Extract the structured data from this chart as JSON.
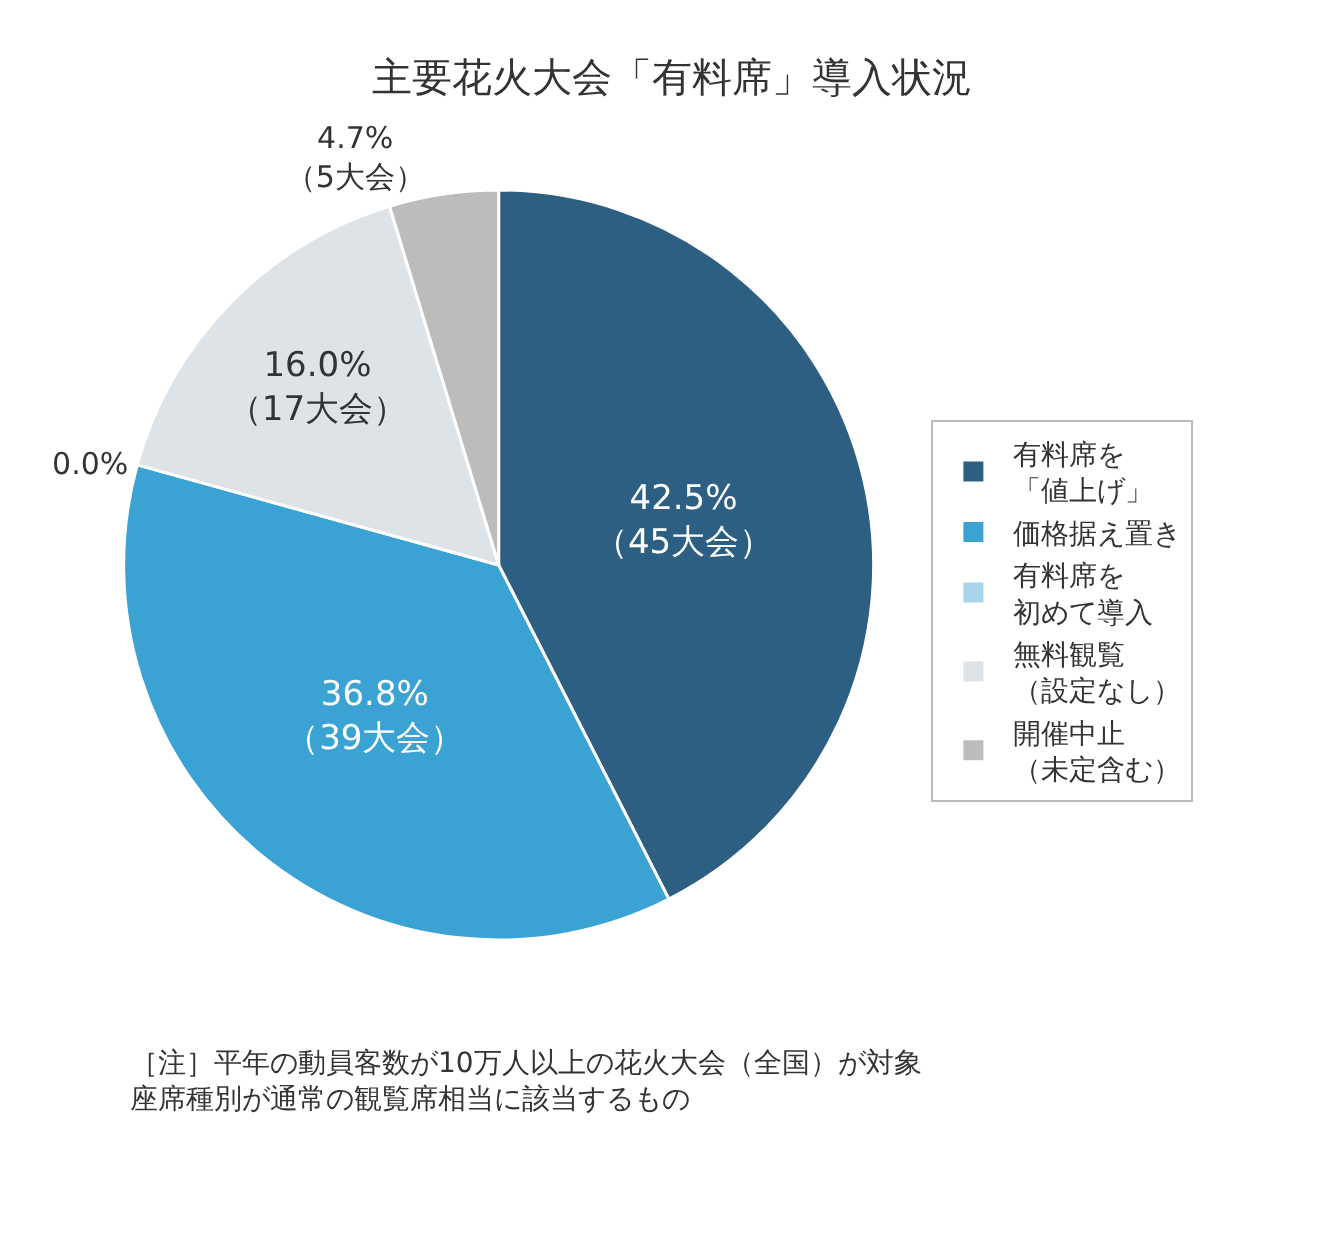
{
  "chart_data": {
    "type": "pie",
    "title": "主要花火大会「有料席」導入状況",
    "categories": [
      "有料席を「値上げ」",
      "価格据え置き",
      "有料席を初めて導入",
      "無料観覧（設定なし）",
      "開催中止（未定含む）"
    ],
    "values": [
      42.5,
      36.8,
      0.0,
      16.0,
      4.7
    ],
    "colors": [
      "#2d5f82",
      "#3aa3d4",
      "#a8d5ec",
      "#dde3e6",
      "#bcbcbc"
    ],
    "value_labels": [
      "42.5%\n（45大会）",
      "36.8%\n（39大会）",
      "0.0%",
      "16.0%\n（17大会）",
      "4.7%\n（5大会）"
    ],
    "legend": "right",
    "annotations": [
      "［注］平年の動員客数が10万人以上の花火大会（全国）が対象座席種別が通常の観覧席相当に該当するもの"
    ]
  }
}
